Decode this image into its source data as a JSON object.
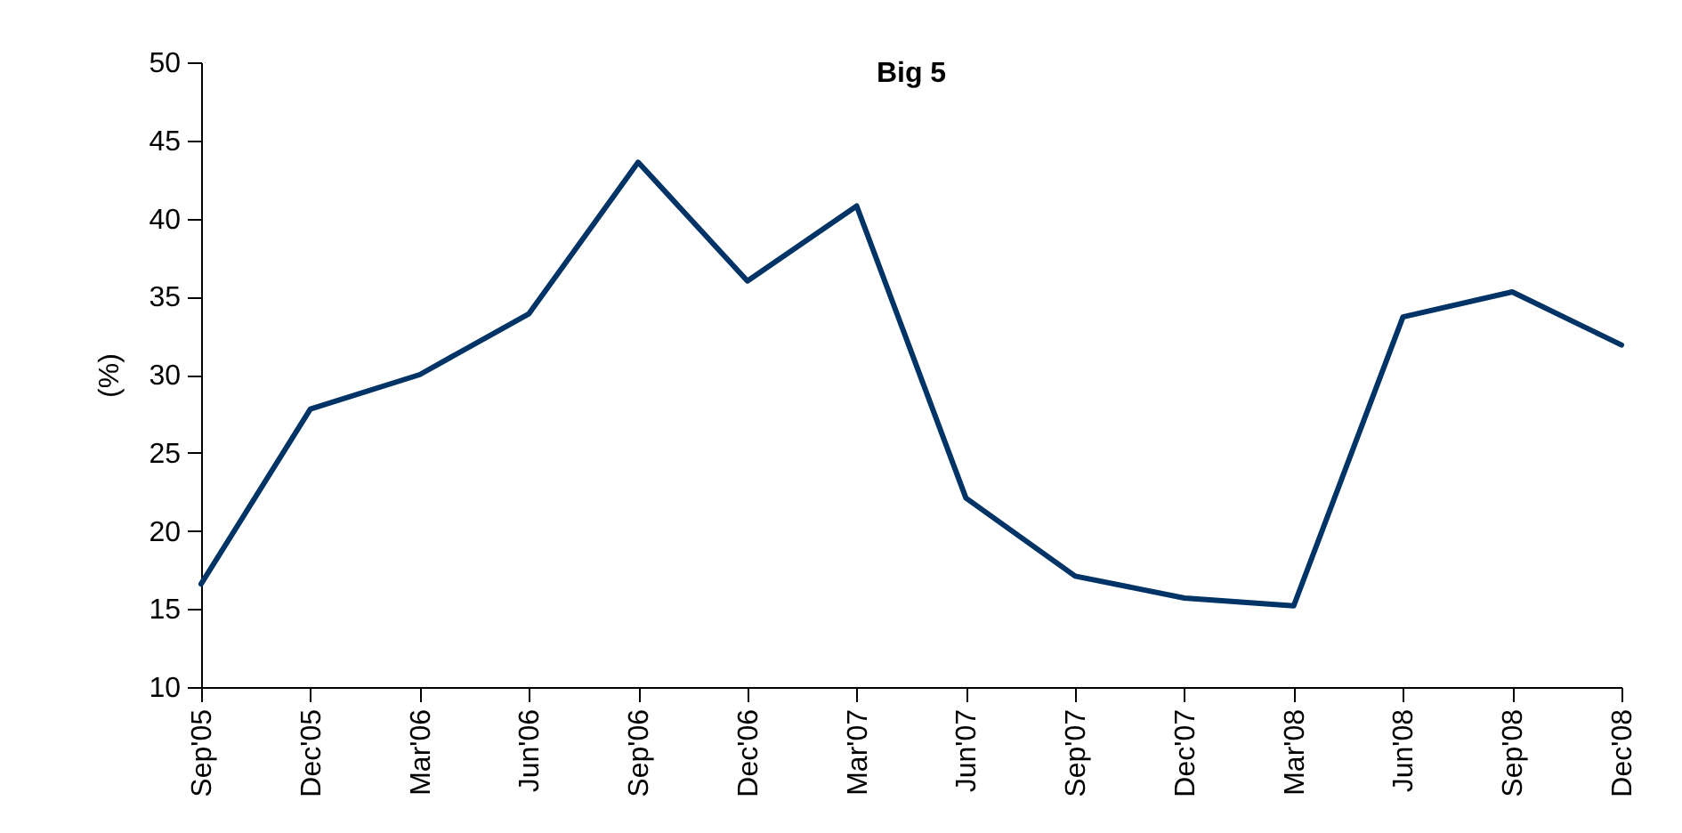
{
  "chart_data": {
    "type": "line",
    "title": "Big 5",
    "ylabel": "(%)",
    "categories": [
      "Sep'05",
      "Dec'05",
      "Mar'06",
      "Jun'06",
      "Sep'06",
      "Dec'06",
      "Mar'07",
      "Jun'07",
      "Sep'07",
      "Dec'07",
      "Mar'08",
      "Jun'08",
      "Sep'08",
      "Dec'08"
    ],
    "series": [
      {
        "color": "#003366",
        "values": [
          16.6,
          27.8,
          30.0,
          33.9,
          43.6,
          36.0,
          40.8,
          22.1,
          17.1,
          15.7,
          15.2,
          33.7,
          35.3,
          31.9
        ]
      }
    ],
    "ylim": [
      10,
      50
    ],
    "yticks": [
      10,
      15,
      20,
      25,
      30,
      35,
      40,
      45,
      50
    ],
    "grid": false,
    "marker": "none",
    "line_style": "solid"
  }
}
